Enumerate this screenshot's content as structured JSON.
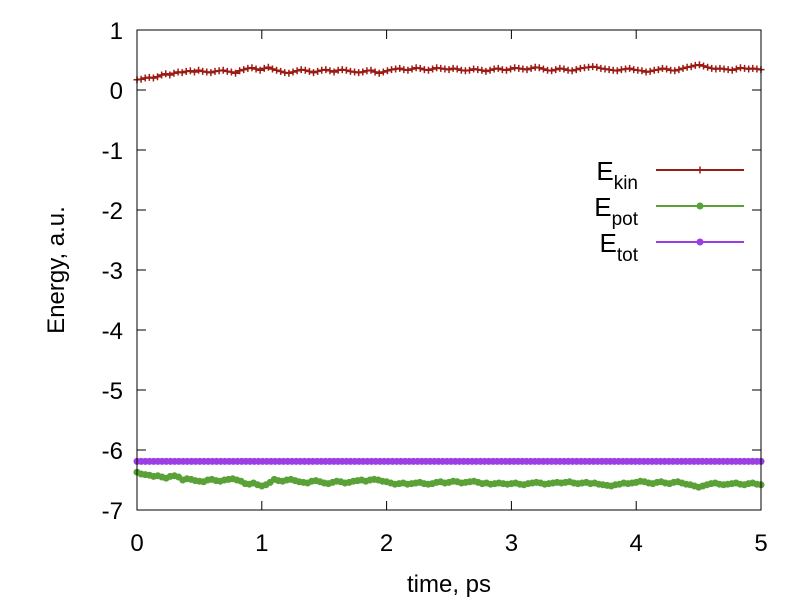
{
  "chart_data": {
    "type": "line",
    "xlabel": "time, ps",
    "ylabel": "Energy, a.u.",
    "xlim": [
      0,
      5
    ],
    "ylim": [
      -7,
      1
    ],
    "xticks": [
      "0",
      "1",
      "2",
      "3",
      "4",
      "5"
    ],
    "yticks": [
      "1",
      "0",
      "-1",
      "-2",
      "-3",
      "-4",
      "-5",
      "-6",
      "-7"
    ],
    "grid": false,
    "legend_position": "right",
    "series": [
      {
        "name_main": "E",
        "name_sub": "kin",
        "color": "#9b1b14",
        "marker": "plus",
        "x_start": 0,
        "x_end": 5,
        "values": [
          0.17,
          0.18,
          0.2,
          0.21,
          0.2,
          0.22,
          0.25,
          0.27,
          0.25,
          0.28,
          0.3,
          0.29,
          0.31,
          0.32,
          0.3,
          0.33,
          0.31,
          0.3,
          0.29,
          0.31,
          0.32,
          0.33,
          0.31,
          0.3,
          0.28,
          0.32,
          0.34,
          0.36,
          0.37,
          0.35,
          0.33,
          0.36,
          0.38,
          0.35,
          0.33,
          0.31,
          0.29,
          0.28,
          0.3,
          0.32,
          0.34,
          0.33,
          0.31,
          0.29,
          0.31,
          0.33,
          0.34,
          0.32,
          0.3,
          0.33,
          0.34,
          0.33,
          0.31,
          0.3,
          0.29,
          0.3,
          0.32,
          0.33,
          0.3,
          0.28,
          0.3,
          0.32,
          0.34,
          0.35,
          0.36,
          0.34,
          0.33,
          0.35,
          0.37,
          0.36,
          0.34,
          0.33,
          0.35,
          0.37,
          0.36,
          0.35,
          0.34,
          0.36,
          0.35,
          0.33,
          0.32,
          0.33,
          0.35,
          0.34,
          0.33,
          0.31,
          0.33,
          0.35,
          0.36,
          0.34,
          0.33,
          0.35,
          0.37,
          0.36,
          0.35,
          0.34,
          0.36,
          0.38,
          0.37,
          0.35,
          0.33,
          0.32,
          0.34,
          0.36,
          0.35,
          0.33,
          0.32,
          0.34,
          0.36,
          0.37,
          0.38,
          0.39,
          0.38,
          0.36,
          0.35,
          0.34,
          0.33,
          0.32,
          0.34,
          0.35,
          0.36,
          0.34,
          0.33,
          0.32,
          0.3,
          0.31,
          0.33,
          0.34,
          0.36,
          0.35,
          0.33,
          0.32,
          0.34,
          0.36,
          0.38,
          0.39,
          0.41,
          0.42,
          0.4,
          0.38,
          0.36,
          0.35,
          0.36,
          0.35,
          0.34,
          0.33,
          0.35,
          0.37,
          0.36,
          0.35,
          0.36,
          0.35,
          0.34
        ]
      },
      {
        "name_main": "E",
        "name_sub": "pot",
        "color": "#5aa137",
        "marker": "dot",
        "x_start": 0,
        "x_end": 5,
        "values": [
          -6.37,
          -6.4,
          -6.41,
          -6.42,
          -6.44,
          -6.43,
          -6.45,
          -6.47,
          -6.44,
          -6.43,
          -6.45,
          -6.5,
          -6.48,
          -6.49,
          -6.51,
          -6.52,
          -6.53,
          -6.5,
          -6.49,
          -6.51,
          -6.52,
          -6.5,
          -6.49,
          -6.48,
          -6.5,
          -6.52,
          -6.56,
          -6.57,
          -6.55,
          -6.58,
          -6.6,
          -6.58,
          -6.54,
          -6.49,
          -6.51,
          -6.52,
          -6.5,
          -6.49,
          -6.51,
          -6.53,
          -6.54,
          -6.55,
          -6.52,
          -6.51,
          -6.53,
          -6.55,
          -6.56,
          -6.54,
          -6.52,
          -6.53,
          -6.55,
          -6.54,
          -6.52,
          -6.51,
          -6.5,
          -6.52,
          -6.5,
          -6.49,
          -6.5,
          -6.52,
          -6.53,
          -6.55,
          -6.57,
          -6.56,
          -6.55,
          -6.57,
          -6.56,
          -6.55,
          -6.54,
          -6.56,
          -6.57,
          -6.56,
          -6.54,
          -6.53,
          -6.55,
          -6.54,
          -6.52,
          -6.53,
          -6.55,
          -6.54,
          -6.53,
          -6.52,
          -6.54,
          -6.56,
          -6.55,
          -6.57,
          -6.56,
          -6.55,
          -6.56,
          -6.57,
          -6.56,
          -6.55,
          -6.57,
          -6.58,
          -6.56,
          -6.55,
          -6.54,
          -6.55,
          -6.57,
          -6.56,
          -6.55,
          -6.54,
          -6.55,
          -6.54,
          -6.53,
          -6.55,
          -6.56,
          -6.55,
          -6.54,
          -6.56,
          -6.55,
          -6.57,
          -6.58,
          -6.59,
          -6.6,
          -6.58,
          -6.57,
          -6.55,
          -6.56,
          -6.55,
          -6.54,
          -6.52,
          -6.53,
          -6.55,
          -6.56,
          -6.54,
          -6.53,
          -6.55,
          -6.56,
          -6.54,
          -6.53,
          -6.55,
          -6.57,
          -6.58,
          -6.6,
          -6.62,
          -6.6,
          -6.58,
          -6.56,
          -6.55,
          -6.57,
          -6.58,
          -6.57,
          -6.56,
          -6.55,
          -6.57,
          -6.58,
          -6.56,
          -6.55,
          -6.57,
          -6.58
        ]
      },
      {
        "name_main": "E",
        "name_sub": "tot",
        "color": "#9b3ee6",
        "marker": "dot",
        "x_start": 0,
        "x_end": 5,
        "values": [
          -6.19,
          -6.19,
          -6.19,
          -6.19,
          -6.19,
          -6.19,
          -6.19,
          -6.19,
          -6.19,
          -6.19,
          -6.19,
          -6.19,
          -6.19,
          -6.19,
          -6.19,
          -6.19,
          -6.19,
          -6.19,
          -6.19,
          -6.19,
          -6.19,
          -6.19,
          -6.19,
          -6.19,
          -6.19,
          -6.19,
          -6.19,
          -6.19,
          -6.19,
          -6.19,
          -6.19,
          -6.19,
          -6.19,
          -6.19,
          -6.19,
          -6.19,
          -6.19,
          -6.19,
          -6.19,
          -6.19,
          -6.19,
          -6.19,
          -6.19,
          -6.19,
          -6.19,
          -6.19,
          -6.19,
          -6.19,
          -6.19,
          -6.19,
          -6.19,
          -6.19,
          -6.19,
          -6.19,
          -6.19,
          -6.19,
          -6.19,
          -6.19,
          -6.19,
          -6.19,
          -6.19,
          -6.19,
          -6.19,
          -6.19,
          -6.19,
          -6.19,
          -6.19,
          -6.19,
          -6.19,
          -6.19,
          -6.19,
          -6.19,
          -6.19,
          -6.19,
          -6.19,
          -6.19,
          -6.19,
          -6.19,
          -6.19,
          -6.19,
          -6.19,
          -6.19,
          -6.19,
          -6.19,
          -6.19,
          -6.19,
          -6.19,
          -6.19,
          -6.19,
          -6.19,
          -6.19,
          -6.19,
          -6.19,
          -6.19,
          -6.19,
          -6.19,
          -6.19,
          -6.19,
          -6.19,
          -6.19,
          -6.19,
          -6.19,
          -6.19,
          -6.19,
          -6.19,
          -6.19,
          -6.19,
          -6.19,
          -6.19,
          -6.19,
          -6.19,
          -6.19,
          -6.19,
          -6.19,
          -6.19,
          -6.19,
          -6.19,
          -6.19,
          -6.19,
          -6.19,
          -6.19,
          -6.19,
          -6.19,
          -6.19,
          -6.19,
          -6.19,
          -6.19,
          -6.19,
          -6.19,
          -6.19,
          -6.19,
          -6.19,
          -6.19,
          -6.19,
          -6.19,
          -6.19,
          -6.19,
          -6.19,
          -6.19,
          -6.19,
          -6.19,
          -6.19,
          -6.19,
          -6.19,
          -6.19,
          -6.19,
          -6.19,
          -6.19,
          -6.19,
          -6.19
        ]
      }
    ]
  }
}
